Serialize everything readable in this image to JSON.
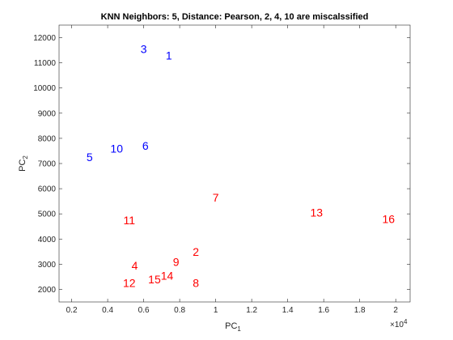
{
  "chart_data": {
    "type": "scatter",
    "title": "KNN Neighbors: 5, Distance: Pearson, 2, 4, 10 are miscalssified",
    "xlabel": "PC",
    "xlabel_sub": "1",
    "ylabel": "PC",
    "ylabel_sub": "2",
    "x_exponent_label": "×10",
    "x_exponent_power": "4",
    "xlim": [
      0.13,
      2.08
    ],
    "ylim": [
      1500,
      12500
    ],
    "x_ticks": [
      0.2,
      0.4,
      0.6,
      0.8,
      1,
      1.2,
      1.4,
      1.6,
      1.8,
      2
    ],
    "x_tick_labels": [
      "0.2",
      "0.4",
      "0.6",
      "0.8",
      "1",
      "1.2",
      "1.4",
      "1.6",
      "1.8",
      "2"
    ],
    "y_ticks": [
      2000,
      3000,
      4000,
      5000,
      6000,
      7000,
      8000,
      9000,
      10000,
      11000,
      12000
    ],
    "y_tick_labels": [
      "2000",
      "3000",
      "4000",
      "5000",
      "6000",
      "7000",
      "8000",
      "9000",
      "10000",
      "11000",
      "12000"
    ],
    "grid": false,
    "colors": {
      "class_a": "#0000ff",
      "class_b": "#ff0000"
    },
    "points": [
      {
        "label": "1",
        "x": 0.74,
        "y": 11300,
        "color": "#0000ff"
      },
      {
        "label": "3",
        "x": 0.6,
        "y": 11550,
        "color": "#0000ff"
      },
      {
        "label": "6",
        "x": 0.61,
        "y": 7700,
        "color": "#0000ff"
      },
      {
        "label": "10",
        "x": 0.45,
        "y": 7600,
        "color": "#0000ff"
      },
      {
        "label": "5",
        "x": 0.3,
        "y": 7250,
        "color": "#0000ff"
      },
      {
        "label": "7",
        "x": 1.0,
        "y": 5650,
        "color": "#ff0000"
      },
      {
        "label": "11",
        "x": 0.52,
        "y": 4750,
        "color": "#ff0000"
      },
      {
        "label": "13",
        "x": 1.56,
        "y": 5050,
        "color": "#ff0000"
      },
      {
        "label": "16",
        "x": 1.96,
        "y": 4800,
        "color": "#ff0000"
      },
      {
        "label": "2",
        "x": 0.89,
        "y": 3500,
        "color": "#ff0000"
      },
      {
        "label": "4",
        "x": 0.55,
        "y": 2950,
        "color": "#ff0000"
      },
      {
        "label": "9",
        "x": 0.78,
        "y": 3100,
        "color": "#ff0000"
      },
      {
        "label": "14",
        "x": 0.73,
        "y": 2550,
        "color": "#ff0000"
      },
      {
        "label": "15",
        "x": 0.66,
        "y": 2400,
        "color": "#ff0000"
      },
      {
        "label": "12",
        "x": 0.52,
        "y": 2250,
        "color": "#ff0000"
      },
      {
        "label": "8",
        "x": 0.89,
        "y": 2250,
        "color": "#ff0000"
      }
    ]
  }
}
